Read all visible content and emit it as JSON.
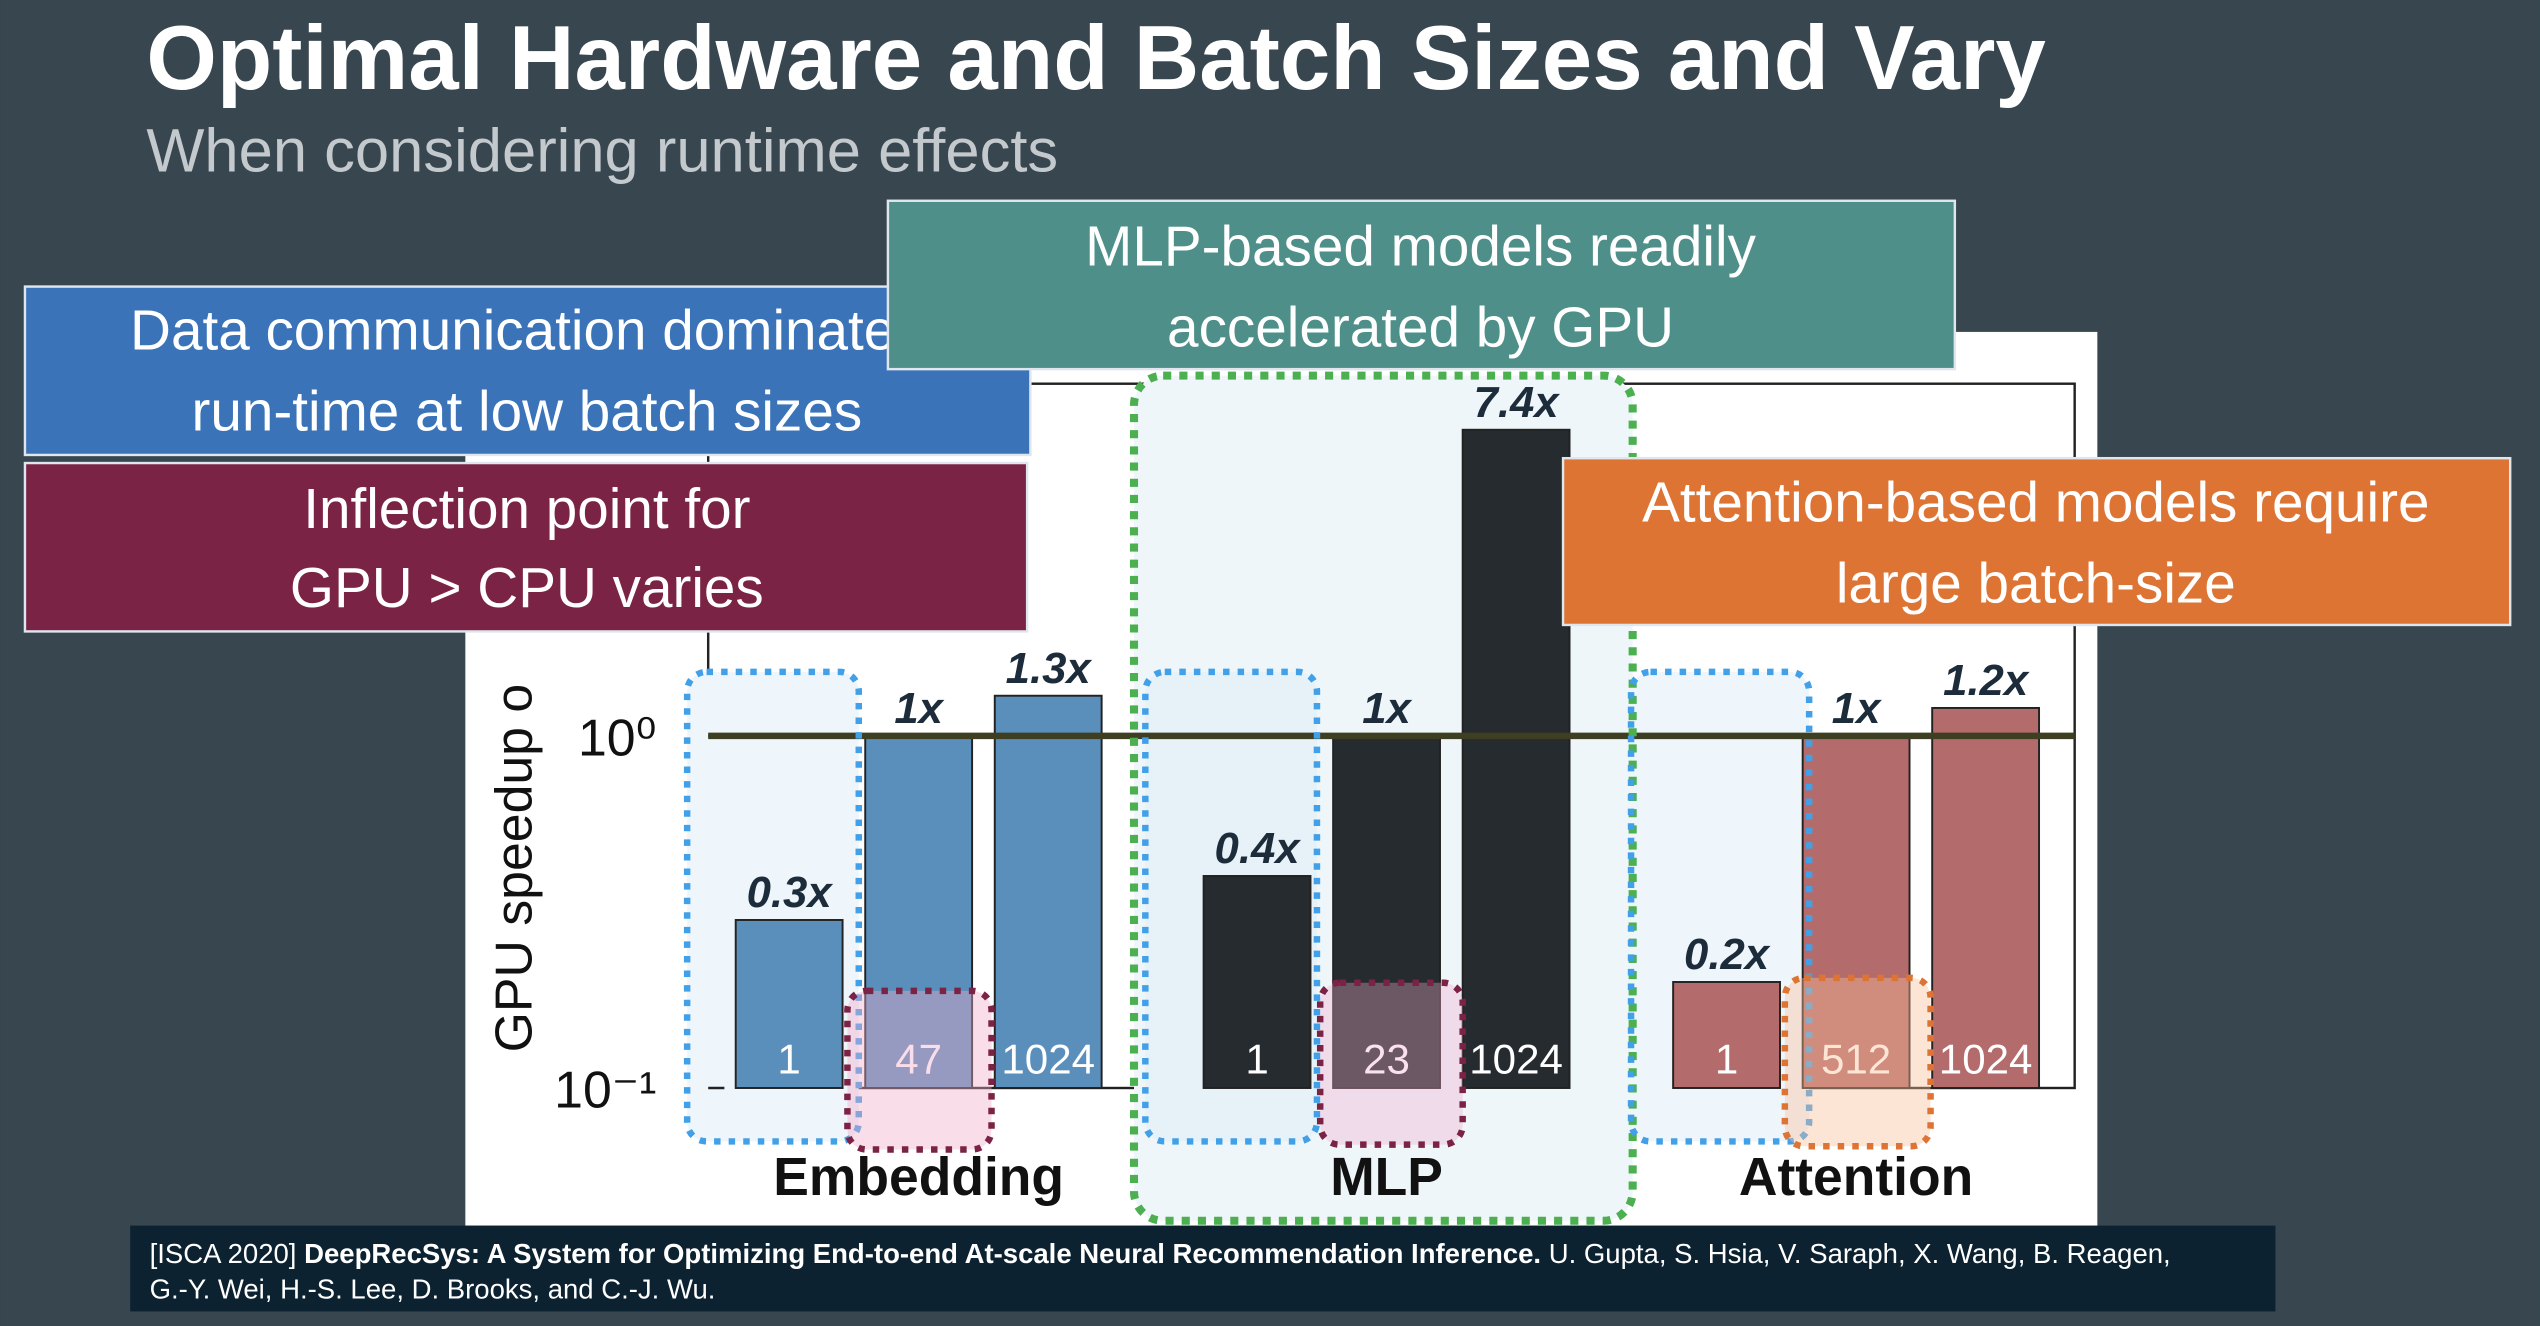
{
  "slide": {
    "title": "Optimal Hardware and Batch Sizes and Vary",
    "subtitle": "When considering runtime effects"
  },
  "callouts": [
    {
      "lines": [
        "Data communication dominates",
        "run-time at low batch sizes"
      ]
    },
    {
      "lines": [
        "Inflection point for",
        "GPU > CPU varies"
      ]
    },
    {
      "lines": [
        "MLP-based models readily",
        "accelerated by GPU"
      ]
    },
    {
      "lines": [
        "Attention-based models require",
        "large batch-size"
      ]
    }
  ],
  "chart_data": {
    "type": "bar",
    "y_label": "GPU speedup o",
    "log_scale": true,
    "ylim": [
      0.1,
      10
    ],
    "yticks": [
      {
        "value": 0.1,
        "label": "10⁻¹"
      },
      {
        "value": 1,
        "label": "10⁰"
      }
    ],
    "reference_line": 1,
    "series": [
      {
        "name": "Embedding",
        "color": "#5a8fbc",
        "categories": [
          "1",
          "47",
          "1024"
        ],
        "values": [
          0.3,
          1,
          1.3
        ],
        "value_labels": [
          "0.3x",
          "1x",
          "1.3x"
        ]
      },
      {
        "name": "MLP",
        "color": "#252b2f",
        "categories": [
          "1",
          "23",
          "1024"
        ],
        "values": [
          0.4,
          1,
          7.4
        ],
        "value_labels": [
          "0.4x",
          "1x",
          "7.4x"
        ]
      },
      {
        "name": "Attention",
        "color": "#b46b6b",
        "categories": [
          "1",
          "512",
          "1024"
        ],
        "values": [
          0.2,
          1,
          1.2
        ],
        "value_labels": [
          "0.2x",
          "1x",
          "1.2x"
        ]
      }
    ]
  },
  "citation": {
    "venue": "[ISCA 2020]",
    "title": "DeepRecSys: A System for Optimizing End-to-end At-scale Neural Recommendation Inference.",
    "authors": [
      "U. Gupta, S. Hsia, V. Saraph, X. Wang, B. Reagen,",
      "G.-Y. Wei, H.-S. Lee, D. Brooks, and C.-J. Wu."
    ]
  }
}
